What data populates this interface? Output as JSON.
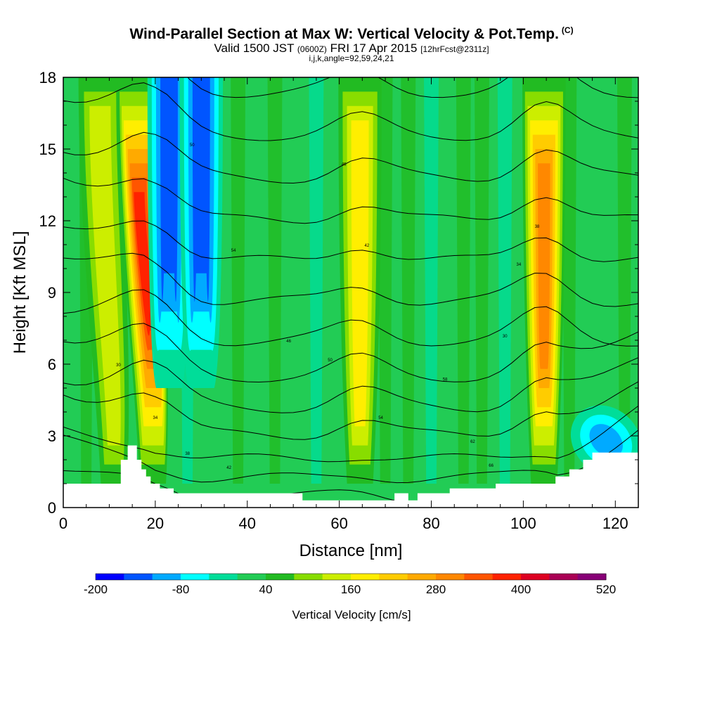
{
  "header": {
    "title": "Wind-Parallel Section at Max W: Vertical Velocity & Pot.Temp.",
    "copyright": "(C)",
    "valid_prefix": "Valid 1500 JST",
    "valid_zulu": "(0600Z)",
    "valid_date": "FRI 17 Apr 2015",
    "forecast": "[12hrFcst@2311z]",
    "indices": "i,j,k,angle=92,59,24,21"
  },
  "chart_data": {
    "type": "heatmap",
    "xlabel": "Distance [nm]",
    "ylabel": "Height [Kft MSL]",
    "xlim": [
      0,
      125
    ],
    "ylim": [
      0,
      18
    ],
    "x_ticks": [
      "0",
      "20",
      "40",
      "60",
      "80",
      "100",
      "120"
    ],
    "y_ticks": [
      "0",
      "3",
      "6",
      "9",
      "12",
      "15",
      "18"
    ],
    "colorbar": {
      "title": "Vertical Velocity [cm/s]",
      "levels": [
        -200,
        -160,
        -120,
        -80,
        -40,
        0,
        40,
        80,
        120,
        160,
        200,
        240,
        280,
        320,
        360,
        400,
        440,
        480,
        520
      ],
      "tick_labels": [
        "-200",
        "-80",
        "40",
        "160",
        "280",
        "400",
        "520"
      ],
      "colors": [
        "#0000ff",
        "#0055ff",
        "#00aaff",
        "#00ffff",
        "#00dd99",
        "#22cc55",
        "#22bb22",
        "#88dd00",
        "#ccee00",
        "#ffee00",
        "#ffcc00",
        "#ffaa00",
        "#ff8800",
        "#ff5500",
        "#ff2200",
        "#dd0022",
        "#aa0055",
        "#880077"
      ]
    },
    "background_w": 20,
    "updrafts": [
      {
        "x": 11,
        "w": 140
      },
      {
        "x": 19.5,
        "w": 400
      },
      {
        "x": 64.5,
        "w": 180
      },
      {
        "x": 104.5,
        "w": 300
      }
    ],
    "downdrafts": [
      {
        "x": 23,
        "w": -160
      },
      {
        "x": 30,
        "w": -160
      },
      {
        "x": 118,
        "w": -120
      }
    ],
    "terrain": [
      [
        0,
        1
      ],
      [
        12.5,
        1
      ],
      [
        12.5,
        2
      ],
      [
        14,
        2
      ],
      [
        14,
        2.6
      ],
      [
        16,
        2.6
      ],
      [
        16,
        2
      ],
      [
        17,
        2
      ],
      [
        17,
        1.6
      ],
      [
        18,
        1.6
      ],
      [
        18,
        1.3
      ],
      [
        19,
        1.3
      ],
      [
        19,
        1
      ],
      [
        21,
        1
      ],
      [
        21,
        0.8
      ],
      [
        24,
        0.8
      ],
      [
        24,
        0.6
      ],
      [
        52,
        0.6
      ],
      [
        52,
        0.3
      ],
      [
        72,
        0.3
      ],
      [
        72,
        0.6
      ],
      [
        75,
        0.6
      ],
      [
        75,
        0.3
      ],
      [
        77,
        0.3
      ],
      [
        77,
        0.6
      ],
      [
        84,
        0.6
      ],
      [
        84,
        0.8
      ],
      [
        94,
        0.8
      ],
      [
        94,
        1
      ],
      [
        107,
        1
      ],
      [
        107,
        1.3
      ],
      [
        110,
        1.3
      ],
      [
        110,
        1.6
      ],
      [
        113,
        1.6
      ],
      [
        113,
        2
      ],
      [
        115,
        2
      ],
      [
        115,
        2.3
      ],
      [
        125,
        2.3
      ]
    ],
    "theta_labels": [
      "30",
      "34",
      "38",
      "42",
      "46",
      "50",
      "54",
      "58",
      "62",
      "66"
    ],
    "theta_level_heights": [
      0.4,
      1.2,
      2,
      3,
      4.2,
      5.5,
      7,
      8.6,
      10.3,
      12,
      13.8,
      15.6,
      17.4
    ]
  }
}
